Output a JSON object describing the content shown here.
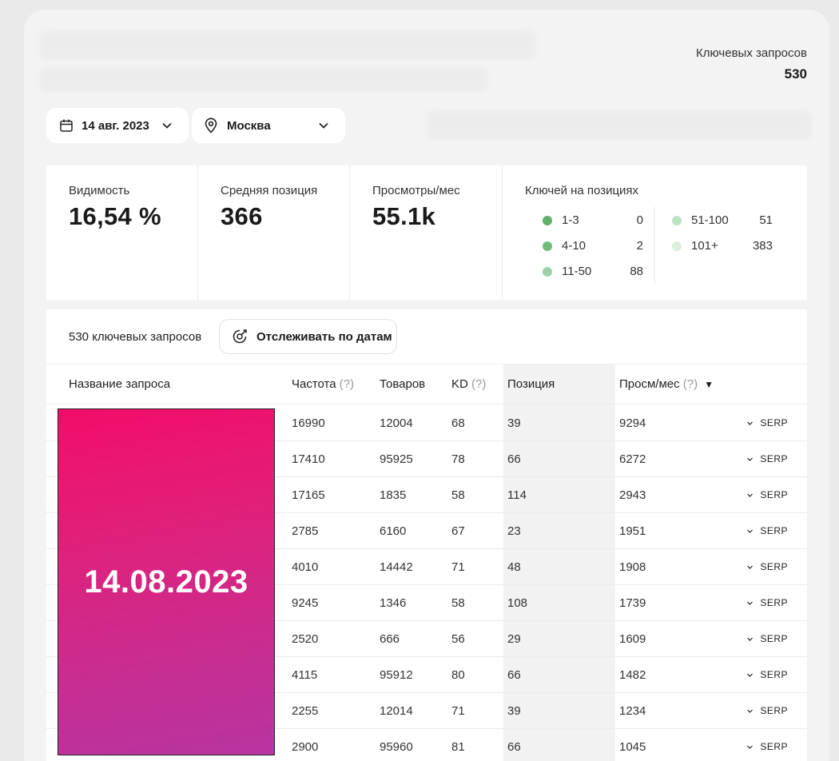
{
  "header": {
    "keywords_label": "Ключевых запросов",
    "keywords_count": "530"
  },
  "filters": {
    "date": "14 авг. 2023",
    "city": "Москва"
  },
  "stats": {
    "visibility_label": "Видимость",
    "visibility_value": "16,54 %",
    "avg_pos_label": "Средняя позиция",
    "avg_pos_value": "366",
    "views_label": "Просмотры/мес",
    "views_value": "55.1k",
    "positions_label": "Ключей на позициях",
    "positions": [
      {
        "range": "1-3",
        "count": "0",
        "color": "#5fb36b"
      },
      {
        "range": "4-10",
        "count": "2",
        "color": "#6fbb7a"
      },
      {
        "range": "11-50",
        "count": "88",
        "color": "#9fd3a6"
      },
      {
        "range": "51-100",
        "count": "51",
        "color": "#bfe2c3"
      },
      {
        "range": "101+",
        "count": "383",
        "color": "#dcefde"
      }
    ]
  },
  "table": {
    "count_label": "530 ключевых запросов",
    "track_label": "Отслеживать по датам",
    "columns": {
      "name": "Название запроса",
      "freq": "Частота",
      "goods": "Товаров",
      "kd": "KD",
      "position": "Позиция",
      "views": "Просм/мес",
      "help": "(?)",
      "sort": "▼"
    },
    "serp_label": "SERP",
    "rows": [
      {
        "freq": "16990",
        "goods": "12004",
        "kd": "68",
        "pos": "39",
        "views": "9294"
      },
      {
        "freq": "17410",
        "goods": "95925",
        "kd": "78",
        "pos": "66",
        "views": "6272"
      },
      {
        "freq": "17165",
        "goods": "1835",
        "kd": "58",
        "pos": "114",
        "views": "2943"
      },
      {
        "freq": "2785",
        "goods": "6160",
        "kd": "67",
        "pos": "23",
        "views": "1951"
      },
      {
        "freq": "4010",
        "goods": "14442",
        "kd": "71",
        "pos": "48",
        "views": "1908"
      },
      {
        "freq": "9245",
        "goods": "1346",
        "kd": "58",
        "pos": "108",
        "views": "1739"
      },
      {
        "freq": "2520",
        "goods": "666",
        "kd": "56",
        "pos": "29",
        "views": "1609"
      },
      {
        "freq": "4115",
        "goods": "95912",
        "kd": "80",
        "pos": "66",
        "views": "1482"
      },
      {
        "freq": "2255",
        "goods": "12014",
        "kd": "71",
        "pos": "39",
        "views": "1234"
      },
      {
        "freq": "2900",
        "goods": "95960",
        "kd": "81",
        "pos": "66",
        "views": "1045"
      }
    ]
  },
  "overlay": {
    "date_text": "14.08.2023"
  }
}
